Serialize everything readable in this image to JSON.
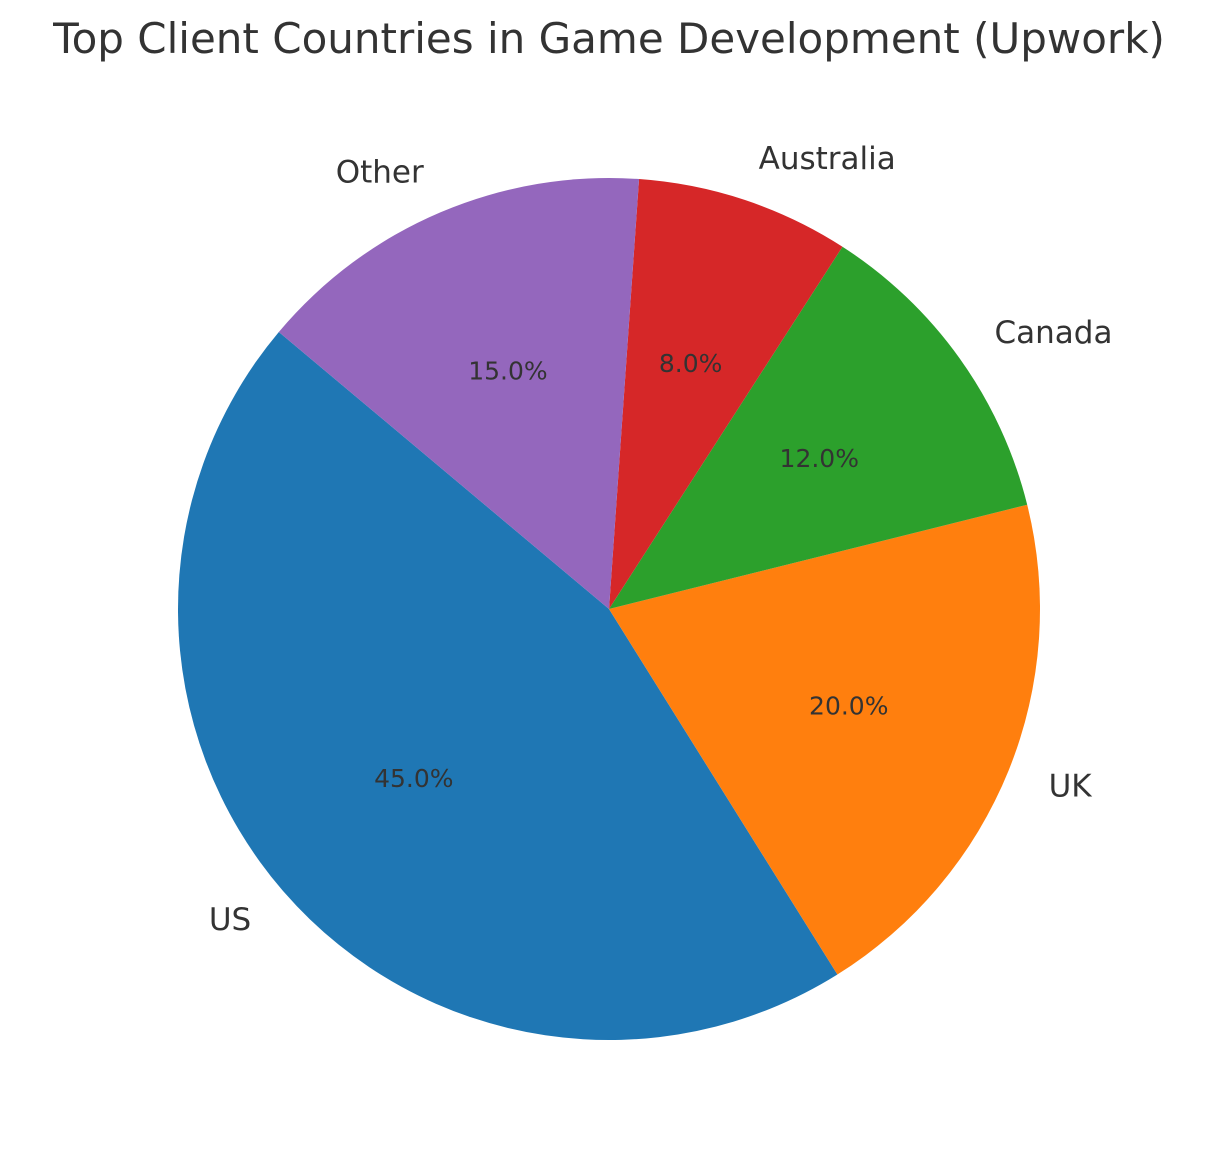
{
  "chart_data": {
    "type": "pie",
    "title": "Top Client Countries in Game Development (Upwork)",
    "categories": [
      "US",
      "UK",
      "Canada",
      "Australia",
      "Other"
    ],
    "values": [
      45.0,
      20.0,
      12.0,
      8.0,
      15.0
    ],
    "percent_labels": [
      "45.0%",
      "20.0%",
      "12.0%",
      "8.0%",
      "15.0%"
    ],
    "colors": [
      "#1f77b4",
      "#ff7f0e",
      "#2ca02c",
      "#d62728",
      "#9467bd"
    ],
    "start_angle_deg": 140,
    "direction": "counterclockwise",
    "legend": "none"
  }
}
